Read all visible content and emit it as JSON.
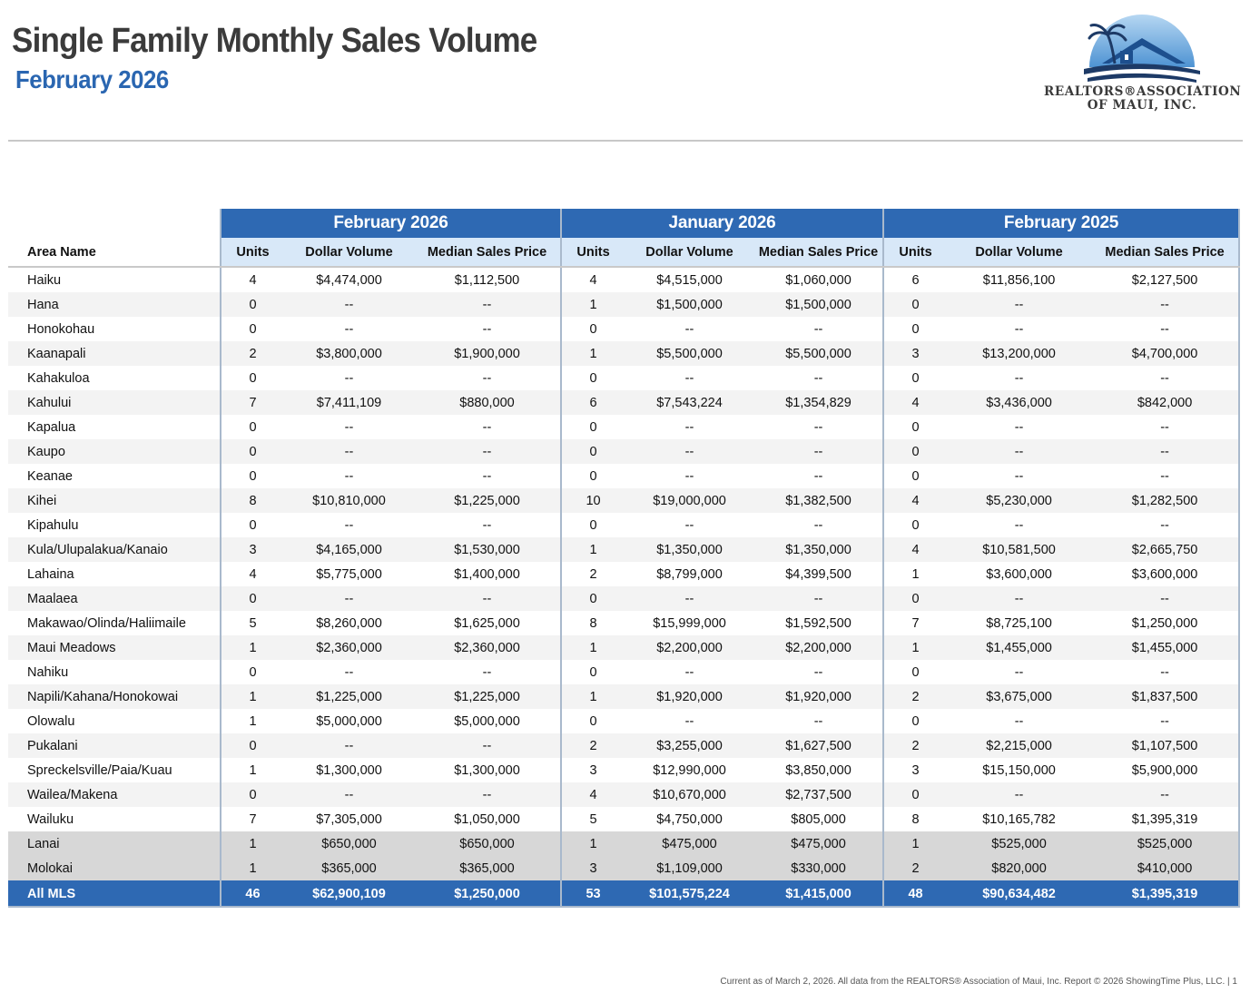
{
  "header": {
    "title": "Single Family Monthly Sales Volume",
    "subtitle": "February 2026"
  },
  "logo": {
    "line1": "REALTORS®ASSOCIATION",
    "line2": "OF MAUI, INC."
  },
  "colors": {
    "header_blue": "#2e69b3",
    "subheader_blue": "#d8e8f8",
    "subtitle_blue": "#2a66b1"
  },
  "table": {
    "periods": [
      "February 2026",
      "January 2026",
      "February 2025"
    ],
    "area_header": "Area Name",
    "col_labels": [
      "Units",
      "Dollar Volume",
      "Median Sales Price"
    ],
    "rows": [
      [
        "Haiku",
        "4",
        "$4,474,000",
        "$1,112,500",
        "4",
        "$4,515,000",
        "$1,060,000",
        "6",
        "$11,856,100",
        "$2,127,500"
      ],
      [
        "Hana",
        "0",
        "--",
        "--",
        "1",
        "$1,500,000",
        "$1,500,000",
        "0",
        "--",
        "--"
      ],
      [
        "Honokohau",
        "0",
        "--",
        "--",
        "0",
        "--",
        "--",
        "0",
        "--",
        "--"
      ],
      [
        "Kaanapali",
        "2",
        "$3,800,000",
        "$1,900,000",
        "1",
        "$5,500,000",
        "$5,500,000",
        "3",
        "$13,200,000",
        "$4,700,000"
      ],
      [
        "Kahakuloa",
        "0",
        "--",
        "--",
        "0",
        "--",
        "--",
        "0",
        "--",
        "--"
      ],
      [
        "Kahului",
        "7",
        "$7,411,109",
        "$880,000",
        "6",
        "$7,543,224",
        "$1,354,829",
        "4",
        "$3,436,000",
        "$842,000"
      ],
      [
        "Kapalua",
        "0",
        "--",
        "--",
        "0",
        "--",
        "--",
        "0",
        "--",
        "--"
      ],
      [
        "Kaupo",
        "0",
        "--",
        "--",
        "0",
        "--",
        "--",
        "0",
        "--",
        "--"
      ],
      [
        "Keanae",
        "0",
        "--",
        "--",
        "0",
        "--",
        "--",
        "0",
        "--",
        "--"
      ],
      [
        "Kihei",
        "8",
        "$10,810,000",
        "$1,225,000",
        "10",
        "$19,000,000",
        "$1,382,500",
        "4",
        "$5,230,000",
        "$1,282,500"
      ],
      [
        "Kipahulu",
        "0",
        "--",
        "--",
        "0",
        "--",
        "--",
        "0",
        "--",
        "--"
      ],
      [
        "Kula/Ulupalakua/Kanaio",
        "3",
        "$4,165,000",
        "$1,530,000",
        "1",
        "$1,350,000",
        "$1,350,000",
        "4",
        "$10,581,500",
        "$2,665,750"
      ],
      [
        "Lahaina",
        "4",
        "$5,775,000",
        "$1,400,000",
        "2",
        "$8,799,000",
        "$4,399,500",
        "1",
        "$3,600,000",
        "$3,600,000"
      ],
      [
        "Maalaea",
        "0",
        "--",
        "--",
        "0",
        "--",
        "--",
        "0",
        "--",
        "--"
      ],
      [
        "Makawao/Olinda/Haliimaile",
        "5",
        "$8,260,000",
        "$1,625,000",
        "8",
        "$15,999,000",
        "$1,592,500",
        "7",
        "$8,725,100",
        "$1,250,000"
      ],
      [
        "Maui Meadows",
        "1",
        "$2,360,000",
        "$2,360,000",
        "1",
        "$2,200,000",
        "$2,200,000",
        "1",
        "$1,455,000",
        "$1,455,000"
      ],
      [
        "Nahiku",
        "0",
        "--",
        "--",
        "0",
        "--",
        "--",
        "0",
        "--",
        "--"
      ],
      [
        "Napili/Kahana/Honokowai",
        "1",
        "$1,225,000",
        "$1,225,000",
        "1",
        "$1,920,000",
        "$1,920,000",
        "2",
        "$3,675,000",
        "$1,837,500"
      ],
      [
        "Olowalu",
        "1",
        "$5,000,000",
        "$5,000,000",
        "0",
        "--",
        "--",
        "0",
        "--",
        "--"
      ],
      [
        "Pukalani",
        "0",
        "--",
        "--",
        "2",
        "$3,255,000",
        "$1,627,500",
        "2",
        "$2,215,000",
        "$1,107,500"
      ],
      [
        "Spreckelsville/Paia/Kuau",
        "1",
        "$1,300,000",
        "$1,300,000",
        "3",
        "$12,990,000",
        "$3,850,000",
        "3",
        "$15,150,000",
        "$5,900,000"
      ],
      [
        "Wailea/Makena",
        "0",
        "--",
        "--",
        "4",
        "$10,670,000",
        "$2,737,500",
        "0",
        "--",
        "--"
      ],
      [
        "Wailuku",
        "7",
        "$7,305,000",
        "$1,050,000",
        "5",
        "$4,750,000",
        "$805,000",
        "8",
        "$10,165,782",
        "$1,395,319"
      ],
      [
        "Lanai",
        "1",
        "$650,000",
        "$650,000",
        "1",
        "$475,000",
        "$475,000",
        "1",
        "$525,000",
        "$525,000"
      ],
      [
        "Molokai",
        "1",
        "$365,000",
        "$365,000",
        "3",
        "$1,109,000",
        "$330,000",
        "2",
        "$820,000",
        "$410,000"
      ]
    ],
    "total": [
      "All MLS",
      "46",
      "$62,900,109",
      "$1,250,000",
      "53",
      "$101,575,224",
      "$1,415,000",
      "48",
      "$90,634,482",
      "$1,395,319"
    ]
  },
  "footer": "Current as of March 2, 2026. All data from the REALTORS® Association of Maui, Inc. Report © 2026 ShowingTime Plus, LLC.  |  1"
}
